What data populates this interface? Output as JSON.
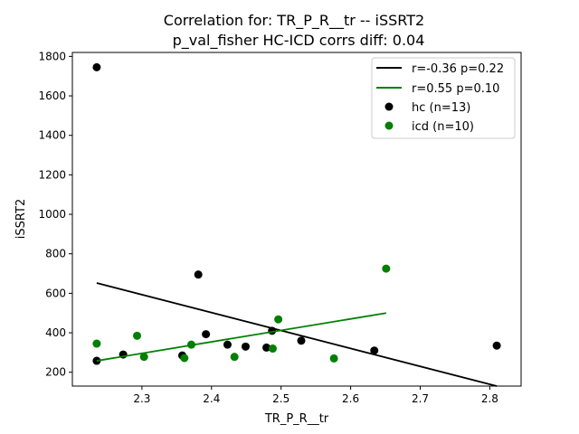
{
  "chart_data": {
    "type": "scatter",
    "title": "Correlation for: TR_P_R__tr -- iSSRT2",
    "subtitle": "p_val_fisher HC-ICD corrs diff: 0.04",
    "xlabel": "TR_P_R__tr",
    "ylabel": "iSSRT2",
    "xlim": [
      2.2,
      2.845
    ],
    "ylim": [
      130,
      1820
    ],
    "xticks": [
      2.3,
      2.4,
      2.5,
      2.6,
      2.7,
      2.8
    ],
    "xtick_labels": [
      "2.3",
      "2.4",
      "2.5",
      "2.6",
      "2.7",
      "2.8"
    ],
    "yticks": [
      200,
      400,
      600,
      800,
      1000,
      1200,
      1400,
      1600,
      1800
    ],
    "ytick_labels": [
      "200",
      "400",
      "600",
      "800",
      "1000",
      "1200",
      "1400",
      "1600",
      "1800"
    ],
    "grid": false,
    "legend_position": "top-right",
    "series": [
      {
        "name": "hc (n=13)",
        "kind": "scatter",
        "color": "#000000",
        "points": [
          [
            2.235,
            1745
          ],
          [
            2.235,
            258
          ],
          [
            2.273,
            290
          ],
          [
            2.358,
            285
          ],
          [
            2.381,
            695
          ],
          [
            2.392,
            393
          ],
          [
            2.423,
            340
          ],
          [
            2.449,
            330
          ],
          [
            2.479,
            325
          ],
          [
            2.487,
            410
          ],
          [
            2.529,
            360
          ],
          [
            2.634,
            310
          ],
          [
            2.81,
            335
          ]
        ]
      },
      {
        "name": "icd (n=10)",
        "kind": "scatter",
        "color": "#008000",
        "points": [
          [
            2.235,
            345
          ],
          [
            2.293,
            385
          ],
          [
            2.303,
            278
          ],
          [
            2.361,
            272
          ],
          [
            2.371,
            340
          ],
          [
            2.433,
            278
          ],
          [
            2.488,
            320
          ],
          [
            2.496,
            468
          ],
          [
            2.576,
            270
          ],
          [
            2.651,
            725
          ]
        ]
      }
    ],
    "fit_lines": [
      {
        "name": "r=-0.36 p=0.22",
        "color": "#000000",
        "x": [
          2.235,
          2.81
        ],
        "y": [
          652,
          130
        ]
      },
      {
        "name": "r=0.55 p=0.10",
        "color": "#008000",
        "x": [
          2.235,
          2.651
        ],
        "y": [
          258,
          500
        ]
      }
    ]
  }
}
